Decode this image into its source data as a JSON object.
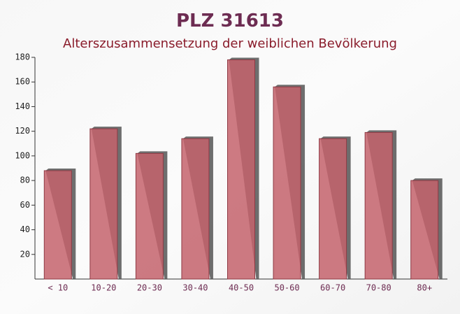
{
  "chart_data": {
    "type": "bar",
    "title": "PLZ 31613",
    "subtitle": "Alterszusammensetzung der weiblichen Bevölkerung",
    "categories": [
      "< 10",
      "10-20",
      "20-30",
      "30-40",
      "40-50",
      "50-60",
      "60-70",
      "70-80",
      "80+"
    ],
    "values": [
      88,
      122,
      102,
      114,
      178,
      156,
      114,
      119,
      80
    ],
    "color": "#c4636c",
    "ylim": [
      0,
      180
    ],
    "yticks": [
      20,
      40,
      60,
      80,
      100,
      120,
      140,
      160,
      180
    ]
  }
}
